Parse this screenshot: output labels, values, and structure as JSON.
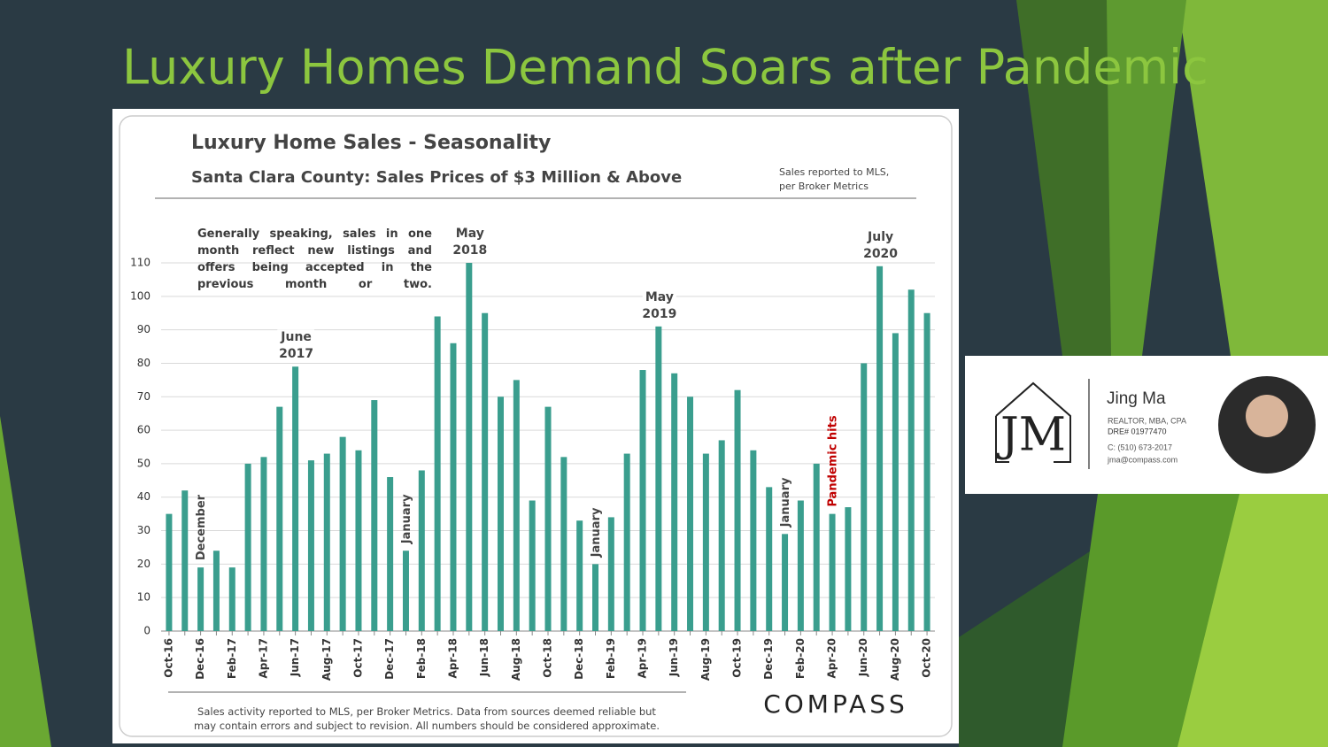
{
  "slide_title": "Luxury Homes Demand Soars after Pandemic",
  "chart_data": {
    "type": "bar",
    "title": "Luxury Home Sales - Seasonality",
    "subtitle": "Santa Clara County: Sales Prices of $3 Million & Above",
    "source_note": "Sales reported to MLS, per Broker Metrics",
    "note": "Generally speaking, sales in one month reflect new listings and offers being accepted in the previous month or two.",
    "footnote": "Sales activity reported to MLS, per Broker Metrics. Data from sources deemed reliable but may contain errors and subject to revision. All numbers should be considered approximate.",
    "categories": [
      "Oct-16",
      null,
      "Dec-16",
      null,
      "Feb-17",
      null,
      "Apr-17",
      null,
      "Jun-17",
      null,
      "Aug-17",
      null,
      "Oct-17",
      null,
      "Dec-17",
      null,
      "Feb-18",
      null,
      "Apr-18",
      null,
      "Jun-18",
      null,
      "Aug-18",
      null,
      "Oct-18",
      null,
      "Dec-18",
      null,
      "Feb-19",
      null,
      "Apr-19",
      null,
      "Jun-19",
      null,
      "Aug-19",
      null,
      "Oct-19",
      null,
      "Dec-19",
      null,
      "Feb-20",
      null,
      "Apr-20",
      null,
      "Jun-20",
      null,
      "Aug-20",
      null,
      "Oct-20"
    ],
    "values": [
      35,
      42,
      19,
      24,
      19,
      50,
      52,
      67,
      79,
      51,
      53,
      58,
      54,
      69,
      46,
      24,
      48,
      94,
      86,
      110,
      95,
      70,
      75,
      39,
      67,
      52,
      33,
      20,
      34,
      53,
      78,
      91,
      77,
      70,
      53,
      57,
      72,
      54,
      43,
      29,
      39,
      50,
      35,
      37,
      80,
      109,
      89,
      102,
      95
    ],
    "color": "#3a9e8e",
    "ylim": [
      0,
      110
    ],
    "yticks": [
      0,
      10,
      20,
      30,
      40,
      50,
      60,
      70,
      80,
      90,
      100,
      110
    ],
    "grid": true,
    "annotations": [
      {
        "lines": [
          "June",
          "2017"
        ]
      },
      {
        "lines": [
          "May",
          "2018"
        ]
      },
      {
        "lines": [
          "May",
          "2019"
        ]
      },
      {
        "lines": [
          "July",
          "2020"
        ]
      },
      {
        "text": "December"
      },
      {
        "text": "January"
      },
      {
        "text": "January"
      },
      {
        "text": "January"
      },
      {
        "text": "Pandemic hits"
      }
    ]
  },
  "logo": "COMPASS",
  "card": {
    "monogram": "JM",
    "name": "Jing Ma",
    "credentials": "REALTOR, MBA, CPA",
    "license": "DRE# 01977470",
    "phone": "C: (510) 673-2017",
    "email": "jma@compass.com"
  }
}
